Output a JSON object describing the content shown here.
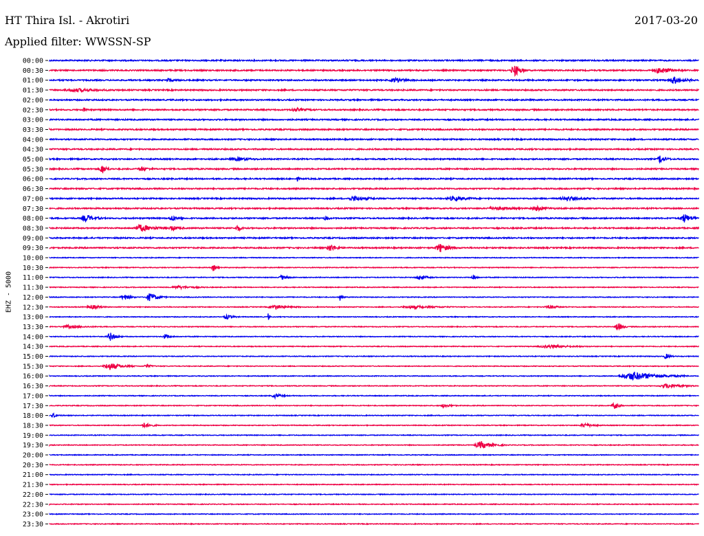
{
  "header": {
    "station": "HT Thira Isl. - Akrotiri",
    "date": "2017-03-20",
    "filter": "Applied filter: WWSSN-SP"
  },
  "chart_data": {
    "type": "line",
    "ylabel": "EHZ - 5000",
    "row_labels": [
      "00:00",
      "00:30",
      "01:00",
      "01:30",
      "02:00",
      "02:30",
      "03:00",
      "03:30",
      "04:00",
      "04:30",
      "05:00",
      "05:30",
      "06:00",
      "06:30",
      "07:00",
      "07:30",
      "08:00",
      "08:30",
      "09:00",
      "09:30",
      "10:00",
      "10:30",
      "11:00",
      "11:30",
      "12:00",
      "12:30",
      "13:00",
      "13:30",
      "14:00",
      "14:30",
      "15:00",
      "15:30",
      "16:00",
      "16:30",
      "17:00",
      "17:30",
      "18:00",
      "18:30",
      "19:00",
      "19:30",
      "20:00",
      "20:30",
      "21:00",
      "21:30",
      "22:00",
      "22:30",
      "23:00",
      "23:30"
    ],
    "colors": [
      "#0000ee",
      "#ee0044"
    ],
    "grid": false
  }
}
